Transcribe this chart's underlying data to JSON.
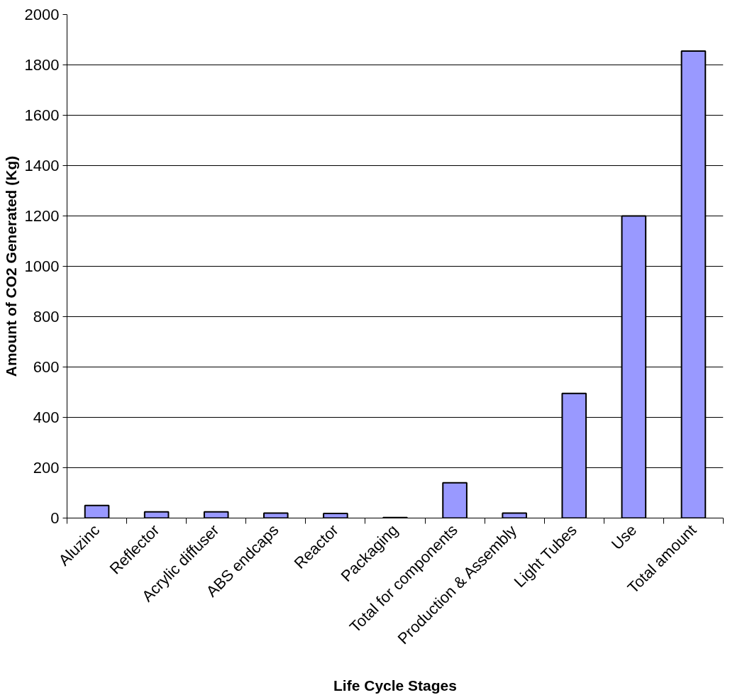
{
  "chart_data": {
    "type": "bar",
    "xlabel": "Life Cycle Stages",
    "ylabel": "Amount of CO2 Generated (Kg)",
    "categories": [
      "Aluzinc",
      "Reflector",
      "Acrylic diffuser",
      "ABS endcaps",
      "Reactor",
      "Packaging",
      "Total for components",
      "Production & Assembly",
      "Light Tubes",
      "Use",
      "Total amount"
    ],
    "values": [
      50,
      25,
      25,
      20,
      18,
      2,
      140,
      20,
      495,
      1200,
      1855
    ],
    "color": "#9999ff",
    "ylim": [
      0,
      2000
    ],
    "yticks": [
      0,
      200,
      400,
      600,
      800,
      1000,
      1200,
      1400,
      1600,
      1800,
      2000
    ],
    "grid": "y"
  }
}
